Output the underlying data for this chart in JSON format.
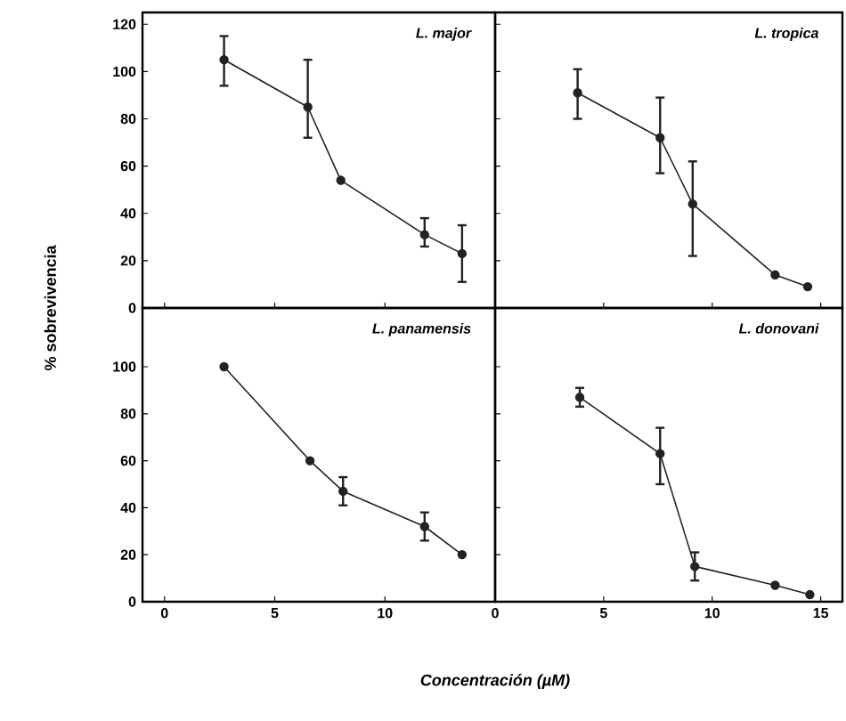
{
  "chart_data": [
    {
      "type": "line",
      "title": "L. major",
      "ylabel": "% sobrevivencia",
      "xlim": [
        -1,
        15
      ],
      "ylim": [
        0,
        125
      ],
      "xticks": [
        0,
        5,
        10,
        15
      ],
      "yticks": [
        0,
        20,
        40,
        60,
        80,
        100,
        120
      ],
      "tick_labels": "y",
      "marker": "circle",
      "line_style": "solid",
      "series": [
        {
          "color": "#222222",
          "x": [
            2.7,
            6.5,
            8,
            11.8,
            13.5
          ],
          "values": [
            105,
            85,
            54,
            31,
            23
          ],
          "errors": [
            [
              94,
              115
            ],
            [
              72,
              105
            ],
            null,
            [
              26,
              38
            ],
            [
              11,
              35
            ]
          ]
        }
      ]
    },
    {
      "type": "line",
      "title": "L. tropica",
      "xlim": [
        0,
        16
      ],
      "ylim": [
        0,
        125
      ],
      "xticks": [
        0,
        5,
        10,
        15
      ],
      "yticks": [
        0,
        20,
        40,
        60,
        80,
        100,
        120
      ],
      "tick_labels": false,
      "marker": "circle",
      "line_style": "solid",
      "series": [
        {
          "color": "#222222",
          "x": [
            3.8,
            7.6,
            9.1,
            12.9,
            14.4
          ],
          "values": [
            91,
            72,
            44,
            14,
            9
          ],
          "errors": [
            [
              80,
              101
            ],
            [
              57,
              89
            ],
            [
              22,
              62
            ],
            null,
            null
          ]
        }
      ]
    },
    {
      "type": "line",
      "title": "L. panamensis",
      "xlabel": "Concentración (µM)",
      "xlim": [
        -1,
        15
      ],
      "ylim": [
        0,
        125
      ],
      "xticks": [
        0,
        5,
        10
      ],
      "yticks": [
        0,
        20,
        40,
        60,
        80,
        100
      ],
      "marker": "circle",
      "line_style": "solid",
      "series": [
        {
          "color": "#222222",
          "x": [
            2.7,
            6.6,
            8.1,
            11.8,
            13.5
          ],
          "values": [
            100,
            60,
            47,
            32,
            20
          ],
          "errors": [
            null,
            null,
            [
              41,
              53
            ],
            [
              26,
              38
            ],
            null
          ]
        }
      ]
    },
    {
      "type": "line",
      "title": "L. donovani",
      "xlim": [
        0,
        16
      ],
      "ylim": [
        0,
        125
      ],
      "xticks": [
        0,
        5,
        10,
        15
      ],
      "yticks": [
        0,
        20,
        40,
        60,
        80,
        100
      ],
      "tick_labels": "x",
      "marker": "circle",
      "line_style": "solid",
      "series": [
        {
          "color": "#222222",
          "x": [
            3.9,
            7.6,
            9.2,
            12.9,
            14.5
          ],
          "values": [
            87,
            63,
            15,
            7,
            3
          ],
          "errors": [
            [
              83,
              91
            ],
            [
              50,
              74
            ],
            [
              9,
              21
            ],
            null,
            null
          ]
        }
      ]
    }
  ]
}
